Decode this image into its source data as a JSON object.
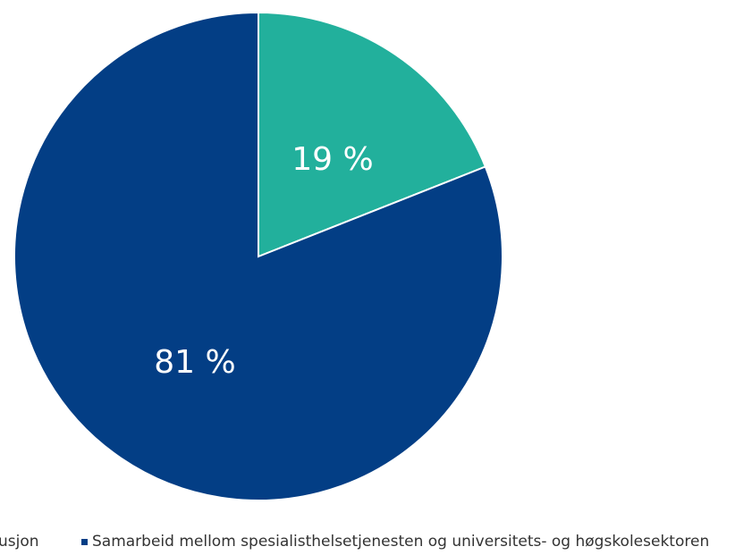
{
  "chart_data": {
    "type": "pie",
    "start_angle_deg": 0,
    "direction": "clockwise",
    "slices": [
      {
        "label": "Samarbeid mellom spesialisthelsetjenesten og universitets- og høgskolesektoren",
        "value": 19,
        "data_label": "19 %",
        "color": "#22b09c"
      },
      {
        "label": "usjon",
        "value": 81,
        "data_label": "81 %",
        "color": "#033e85"
      }
    ]
  }
}
